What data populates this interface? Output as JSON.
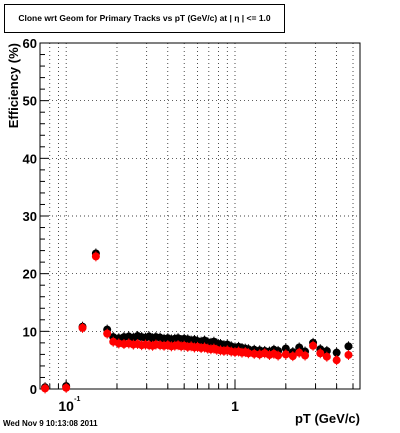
{
  "chart_data": {
    "type": "scatter",
    "title": "Clone wrt Geom for Primary Tracks vs pT (GeV/c) at | η | <= 1.0",
    "xlabel": "pT (GeV/c)",
    "ylabel": "Efficiency (%)",
    "xscale": "log",
    "xlim": [
      0.07,
      5.5
    ],
    "ylim": [
      0,
      60
    ],
    "yticks": [
      0,
      10,
      20,
      30,
      40,
      50,
      60
    ],
    "ytick_labels": [
      "0",
      "10",
      "20",
      "30",
      "40",
      "50",
      "60"
    ],
    "xtick_major_labels": [
      {
        "value": 0.1,
        "base": "10",
        "exp": "-1"
      },
      {
        "value": 1,
        "base": "1",
        "exp": ""
      }
    ],
    "grid": true,
    "series": [
      {
        "color": "#000000",
        "x": [
          0.075,
          0.1,
          0.125,
          0.15,
          0.175,
          0.19,
          0.205,
          0.22,
          0.235,
          0.25,
          0.265,
          0.28,
          0.295,
          0.31,
          0.325,
          0.34,
          0.36,
          0.38,
          0.4,
          0.42,
          0.44,
          0.46,
          0.48,
          0.5,
          0.525,
          0.55,
          0.575,
          0.6,
          0.63,
          0.66,
          0.69,
          0.72,
          0.75,
          0.78,
          0.82,
          0.86,
          0.9,
          0.95,
          1.0,
          1.05,
          1.1,
          1.15,
          1.2,
          1.3,
          1.4,
          1.5,
          1.6,
          1.7,
          1.8,
          2.0,
          2.2,
          2.4,
          2.6,
          2.9,
          3.2,
          3.5,
          4.0,
          4.7
        ],
        "y": [
          0.3,
          0.5,
          10.8,
          23.5,
          10.3,
          9.0,
          8.8,
          9.0,
          9.1,
          8.9,
          9.2,
          9.0,
          8.9,
          9.1,
          8.8,
          9.0,
          8.9,
          8.7,
          8.8,
          8.6,
          8.7,
          8.8,
          8.5,
          8.7,
          8.6,
          8.4,
          8.5,
          8.3,
          8.2,
          8.4,
          8.1,
          8.0,
          8.2,
          7.9,
          7.8,
          7.6,
          7.7,
          7.4,
          7.2,
          7.3,
          7.1,
          7.0,
          6.9,
          6.8,
          6.7,
          6.6,
          6.5,
          6.8,
          6.6,
          7.0,
          6.4,
          7.2,
          6.5,
          8.0,
          6.9,
          6.6,
          6.3,
          7.4
        ]
      },
      {
        "color": "#ff0000",
        "x": [
          0.075,
          0.1,
          0.125,
          0.15,
          0.175,
          0.19,
          0.205,
          0.22,
          0.235,
          0.25,
          0.265,
          0.28,
          0.295,
          0.31,
          0.325,
          0.34,
          0.36,
          0.38,
          0.4,
          0.42,
          0.44,
          0.46,
          0.48,
          0.5,
          0.525,
          0.55,
          0.575,
          0.6,
          0.63,
          0.66,
          0.69,
          0.72,
          0.75,
          0.78,
          0.82,
          0.86,
          0.9,
          0.95,
          1.0,
          1.05,
          1.1,
          1.15,
          1.2,
          1.3,
          1.4,
          1.5,
          1.6,
          1.7,
          1.8,
          2.0,
          2.2,
          2.4,
          2.6,
          2.9,
          3.2,
          3.5,
          4.0,
          4.7
        ],
        "y": [
          0.1,
          0.2,
          10.6,
          23.0,
          9.6,
          8.2,
          7.9,
          7.8,
          7.9,
          7.7,
          7.8,
          7.6,
          7.7,
          7.6,
          7.5,
          7.7,
          7.6,
          7.5,
          7.6,
          7.4,
          7.5,
          7.6,
          7.4,
          7.5,
          7.3,
          7.4,
          7.2,
          7.3,
          7.1,
          7.2,
          7.0,
          6.9,
          7.0,
          6.8,
          6.7,
          6.6,
          6.7,
          6.5,
          6.4,
          6.5,
          6.3,
          6.4,
          6.2,
          6.1,
          6.0,
          6.2,
          5.9,
          6.1,
          5.8,
          6.0,
          5.7,
          6.3,
          5.8,
          7.5,
          6.2,
          5.6,
          5.0,
          5.9
        ]
      }
    ]
  },
  "footer": {
    "timestamp": "Wed Nov  9 10:13:08 2011"
  }
}
